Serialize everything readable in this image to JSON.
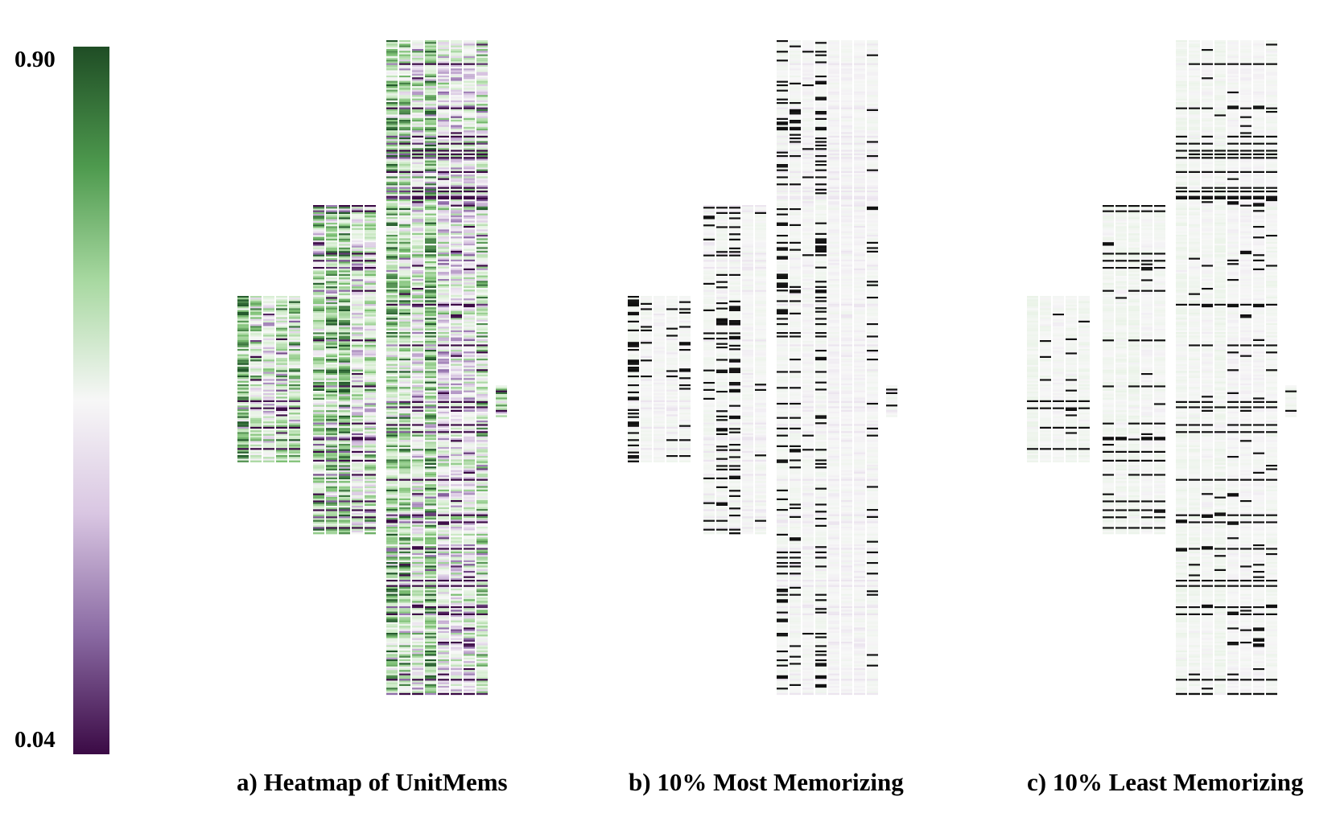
{
  "chart_data": {
    "type": "heatmap",
    "colorbar": {
      "max_label": "0.90",
      "min_label": "0.04",
      "range": [
        0.04,
        0.9
      ],
      "colormap": [
        "#3b0a45",
        "#8e6aa8",
        "#d9c6e2",
        "#f7f7f7",
        "#d3edcd",
        "#7bbf72",
        "#245a2c"
      ]
    },
    "highlight_color": "#111111",
    "panels": [
      {
        "id": "a",
        "caption": "a)  Heatmap of UnitMems",
        "mode": "full",
        "fraction": 1.0
      },
      {
        "id": "b",
        "caption": "b) 10% Most Memorizing",
        "mode": "top",
        "fraction": 0.1
      },
      {
        "id": "c",
        "caption": "c) 10% Least Memorizing",
        "mode": "bottom",
        "fraction": 0.1
      }
    ]
  }
}
